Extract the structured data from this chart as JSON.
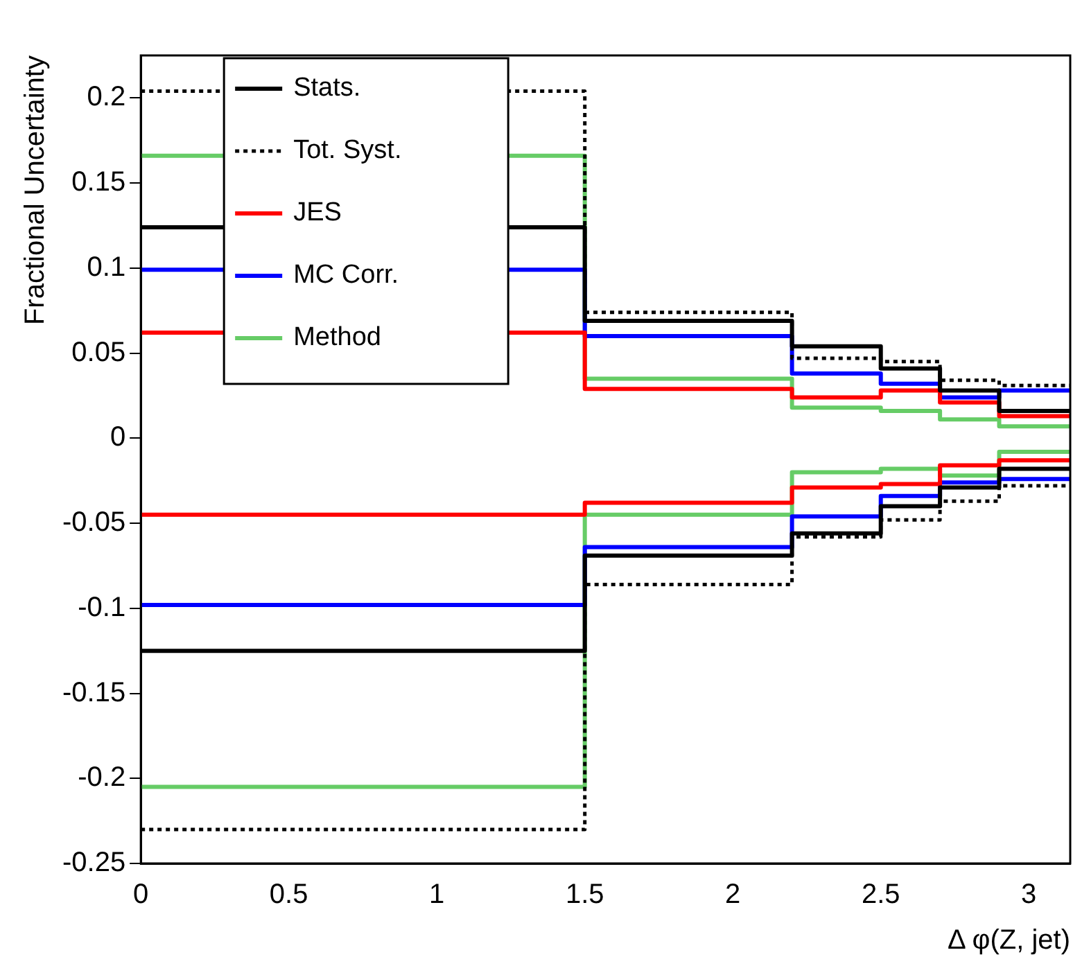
{
  "chart_data": {
    "type": "histogram",
    "xlabel": "Δ φ(Z, jet)",
    "ylabel": "Fractional Uncertainty",
    "bins": [
      0,
      1.5,
      2.2,
      2.5,
      2.7,
      2.9,
      3.14
    ],
    "xlim": [
      0,
      3.14
    ],
    "xticks": [
      0,
      0.5,
      1,
      1.5,
      2,
      2.5,
      3
    ],
    "ylim": [
      -0.25,
      0.225
    ],
    "yticks": [
      -0.25,
      -0.2,
      -0.15,
      -0.1,
      -0.05,
      0,
      0.05,
      0.1,
      0.15,
      0.2
    ],
    "grid": false,
    "legend": "top left",
    "series": [
      {
        "name": "Stats.",
        "color": "#000000",
        "line_style": "solid",
        "values": [
          0.124,
          0.069,
          0.054,
          0.041,
          0.028,
          0.016
        ]
      },
      {
        "name": "Tot. Syst.",
        "color": "#000000",
        "line_style": "dotted",
        "values": [
          0.204,
          0.074,
          0.047,
          0.045,
          0.034,
          0.031
        ]
      },
      {
        "name": "JES",
        "color": "#ff0000",
        "line_style": "solid",
        "values": [
          0.062,
          0.029,
          0.024,
          0.028,
          0.021,
          0.013
        ]
      },
      {
        "name": "MC Corr.",
        "color": "#0000ff",
        "line_style": "solid",
        "values": [
          0.099,
          0.06,
          0.038,
          0.032,
          0.024,
          0.028
        ]
      },
      {
        "name": "Method",
        "color": "#66cc66",
        "line_style": "solid",
        "values": [
          0.166,
          0.035,
          0.018,
          0.016,
          0.011,
          0.007
        ]
      },
      {
        "color": "#000000",
        "line_style": "solid",
        "values": [
          -0.125,
          -0.069,
          -0.056,
          -0.04,
          -0.029,
          -0.018
        ]
      },
      {
        "color": "#000000",
        "line_style": "dotted",
        "values": [
          -0.23,
          -0.086,
          -0.058,
          -0.048,
          -0.037,
          -0.028
        ]
      },
      {
        "color": "#ff0000",
        "line_style": "solid",
        "values": [
          -0.045,
          -0.038,
          -0.029,
          -0.027,
          -0.016,
          -0.013
        ]
      },
      {
        "color": "#0000ff",
        "line_style": "solid",
        "values": [
          -0.098,
          -0.064,
          -0.046,
          -0.034,
          -0.026,
          -0.024
        ]
      },
      {
        "color": "#66cc66",
        "line_style": "solid",
        "values": [
          -0.205,
          -0.045,
          -0.02,
          -0.018,
          -0.022,
          -0.008
        ]
      }
    ]
  }
}
